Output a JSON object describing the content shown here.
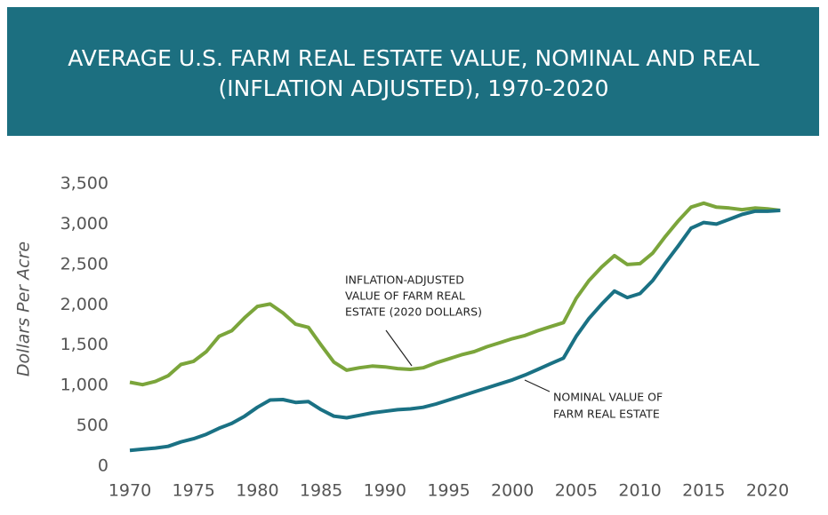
{
  "chart_data": {
    "type": "line",
    "title": [
      "AVERAGE U.S. FARM REAL ESTATE VALUE, NOMINAL AND REAL",
      "(INFLATION ADJUSTED), 1970-2020"
    ],
    "ylabel": "Dollars Per Acre",
    "x": [
      1970,
      1971,
      1972,
      1973,
      1974,
      1975,
      1976,
      1977,
      1978,
      1979,
      1980,
      1981,
      1982,
      1983,
      1984,
      1985,
      1986,
      1987,
      1988,
      1989,
      1990,
      1991,
      1992,
      1993,
      1994,
      1995,
      1996,
      1997,
      1998,
      1999,
      2000,
      2001,
      2002,
      2003,
      2004,
      2005,
      2006,
      2007,
      2008,
      2009,
      2010,
      2011,
      2012,
      2013,
      2014,
      2015,
      2016,
      2017,
      2018,
      2019,
      2020,
      2021
    ],
    "series": [
      {
        "name": "INFLATION-ADJUSTED VALUE OF FARM REAL ESTATE (2020 DOLLARS)",
        "color": "#7ba53b",
        "values": [
          1040,
          1010,
          1050,
          1120,
          1260,
          1300,
          1420,
          1610,
          1680,
          1840,
          1980,
          2010,
          1900,
          1760,
          1720,
          1500,
          1290,
          1190,
          1220,
          1240,
          1230,
          1210,
          1200,
          1220,
          1280,
          1330,
          1380,
          1420,
          1480,
          1530,
          1580,
          1620,
          1680,
          1730,
          1780,
          2080,
          2300,
          2470,
          2610,
          2500,
          2510,
          2640,
          2850,
          3040,
          3210,
          3260,
          3210,
          3200,
          3180,
          3200,
          3190,
          3170
        ]
      },
      {
        "name": "NOMINAL VALUE OF FARM REAL ESTATE",
        "color": "#1a7184",
        "values": [
          196,
          210,
          225,
          245,
          300,
          340,
          395,
          470,
          530,
          620,
          730,
          820,
          825,
          790,
          800,
          700,
          620,
          600,
          630,
          660,
          680,
          700,
          710,
          730,
          770,
          820,
          870,
          920,
          970,
          1020,
          1070,
          1130,
          1200,
          1270,
          1340,
          1610,
          1830,
          2010,
          2170,
          2090,
          2140,
          2300,
          2520,
          2730,
          2950,
          3020,
          3000,
          3060,
          3120,
          3160,
          3160,
          3170
        ]
      }
    ],
    "annotations": [
      {
        "lines": [
          "INFLATION-ADJUSTED",
          "VALUE OF FARM REAL",
          "ESTATE (2020 DOLLARS)"
        ]
      },
      {
        "lines": [
          "NOMINAL VALUE OF",
          "FARM REAL ESTATE"
        ]
      }
    ],
    "xlim": [
      1970,
      2020
    ],
    "xticks": [
      1970,
      1975,
      1980,
      1985,
      1990,
      1995,
      2000,
      2005,
      2010,
      2015,
      2020
    ],
    "ylim": [
      0,
      3500
    ],
    "yticks": [
      0,
      {
        "value": 500,
        "label": "500"
      },
      {
        "value": 1000,
        "label": "1,000"
      },
      {
        "value": 1500,
        "label": "1,500"
      },
      {
        "value": 2000,
        "label": "2,000"
      },
      {
        "value": 2500,
        "label": "2,500"
      },
      {
        "value": 3000,
        "label": "3,000"
      },
      {
        "value": 3500,
        "label": "3,500"
      }
    ],
    "grid": false
  }
}
